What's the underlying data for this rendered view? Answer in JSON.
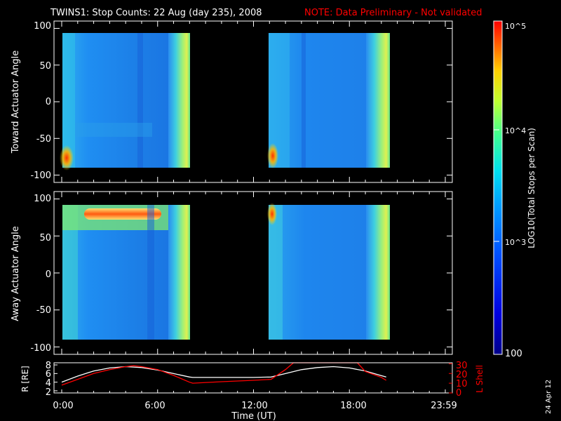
{
  "title": "TWINS1: Stop Counts: 22 Aug (day 235), 2008",
  "note": "NOTE: Data Preliminary - Not validated",
  "stamp": "24 Apr 12",
  "colors": {
    "background": "#000000",
    "axes": "#ffffff",
    "note": "#ff0000",
    "lshell": "#ff0000",
    "r": "#ffffff"
  },
  "chart_data": [
    {
      "type": "heatmap",
      "panel": "toward",
      "ylabel": "Toward Actuator Angle",
      "yticks": [
        "100",
        "50",
        "0",
        "-50",
        "-100"
      ],
      "ylim": [
        -110,
        110
      ],
      "xlim": [
        0,
        24
      ],
      "data_windows_hours": [
        [
          0,
          8.2
        ],
        [
          13.1,
          20.3
        ]
      ],
      "angle_range": [
        -89,
        90
      ],
      "features": "high counts (orange/red) near -85 deg at start of each window; bright green-yellow band at end of each window"
    },
    {
      "type": "heatmap",
      "panel": "away",
      "ylabel": "Away Actuator Angle",
      "yticks": [
        "100",
        "50",
        "0",
        "-50",
        "-100"
      ],
      "ylim": [
        -110,
        110
      ],
      "xlim": [
        0,
        24
      ],
      "data_windows_hours": [
        [
          0,
          8.2
        ],
        [
          13.1,
          20.3
        ]
      ],
      "angle_range": [
        -89,
        90
      ],
      "features": "high counts (orange/red) band near +75 deg between ~1.5h and ~4.5h; bright near +85 deg at start of second window"
    },
    {
      "type": "colorbar",
      "label": "LOG10(Total Stops per Scan)",
      "tick_labels": [
        "10^5",
        "10^4",
        "10^3",
        "100"
      ],
      "range": [
        100,
        100000
      ],
      "scale": "log"
    },
    {
      "type": "line",
      "panel": "orbit",
      "xlabel": "Time (UT)",
      "xticks": [
        "0:00",
        "6:00",
        "12:00",
        "18:00",
        "23:59"
      ],
      "xlim": [
        0,
        24
      ],
      "ylabel_left": "R [RE]",
      "yticks_left": [
        "8",
        "6",
        "4",
        "2"
      ],
      "ylim_left": [
        1.5,
        8.5
      ],
      "ylabel_right": "L Shell",
      "yticks_right": [
        "30",
        "20",
        "10",
        "0"
      ],
      "ylim_right": [
        0,
        31
      ],
      "series": [
        {
          "name": "R [RE]",
          "axis": "left",
          "x": [
            0,
            1,
            2,
            3,
            4,
            5,
            6,
            7,
            8,
            8.2,
            10,
            12,
            13.1,
            14,
            15,
            16,
            17,
            18,
            19,
            20,
            20.3
          ],
          "y": [
            4.0,
            5.4,
            6.6,
            7.3,
            7.6,
            7.4,
            6.8,
            6.0,
            5.2,
            5.1,
            5.1,
            5.1,
            5.2,
            6.0,
            6.9,
            7.4,
            7.6,
            7.3,
            6.6,
            5.5,
            5.2
          ]
        },
        {
          "name": "L Shell",
          "axis": "right",
          "x": [
            0,
            1,
            2,
            3,
            4,
            4.5,
            5,
            6,
            7,
            8,
            8.2,
            10,
            12,
            13.1,
            14,
            14.5,
            18.5,
            19,
            20,
            20.3
          ],
          "y": [
            8,
            14,
            20,
            24,
            27,
            28,
            27,
            24,
            18,
            11,
            10,
            11.5,
            13,
            14,
            24,
            31,
            31,
            22,
            16,
            13
          ]
        }
      ]
    }
  ]
}
